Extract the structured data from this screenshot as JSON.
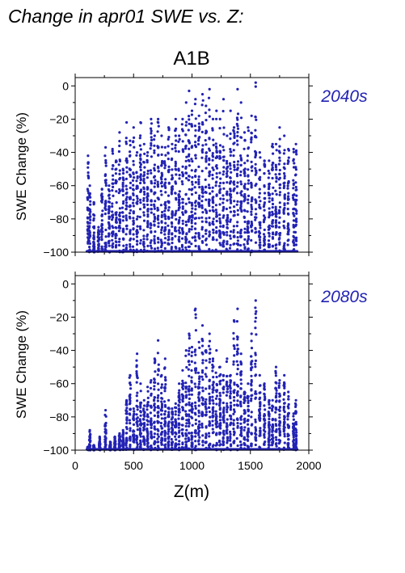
{
  "figure": {
    "title": "Change in apr01 SWE vs. Z:",
    "scenario": "A1B",
    "xlabel": "Z(m)"
  },
  "colors": {
    "points": "#2323b4",
    "panel_label": "#2323b4",
    "axes": "#000000"
  },
  "chart_data": [
    {
      "type": "scatter",
      "panel_label": "2040s",
      "ylabel": "SWE Change (%)",
      "xlim": [
        0,
        2000
      ],
      "ylim": [
        -100,
        5
      ],
      "x_ticks": [
        0,
        500,
        1000,
        1500,
        2000
      ],
      "y_ticks": [
        0,
        -20,
        -40,
        -60,
        -80,
        -100
      ],
      "x_tick_labels_shown": false,
      "grid": false,
      "columns": [
        {
          "z": 110,
          "top": -42
        },
        {
          "z": 125,
          "top": -60
        },
        {
          "z": 160,
          "top": -70
        },
        {
          "z": 200,
          "top": -85
        },
        {
          "z": 230,
          "top": -62
        },
        {
          "z": 260,
          "top": -37
        },
        {
          "z": 290,
          "top": -60
        },
        {
          "z": 320,
          "top": -38
        },
        {
          "z": 350,
          "top": -45
        },
        {
          "z": 380,
          "top": -28
        },
        {
          "z": 410,
          "top": -50
        },
        {
          "z": 440,
          "top": -22
        },
        {
          "z": 470,
          "top": -33
        },
        {
          "z": 500,
          "top": -25
        },
        {
          "z": 530,
          "top": -40
        },
        {
          "z": 560,
          "top": -22
        },
        {
          "z": 590,
          "top": -35
        },
        {
          "z": 620,
          "top": -40
        },
        {
          "z": 650,
          "top": -20
        },
        {
          "z": 680,
          "top": -30
        },
        {
          "z": 710,
          "top": -20
        },
        {
          "z": 740,
          "top": -30
        },
        {
          "z": 770,
          "top": -37
        },
        {
          "z": 800,
          "top": -25
        },
        {
          "z": 830,
          "top": -35
        },
        {
          "z": 860,
          "top": -20
        },
        {
          "z": 890,
          "top": -30
        },
        {
          "z": 920,
          "top": -20
        },
        {
          "z": 950,
          "top": -10
        },
        {
          "z": 975,
          "top": -3
        },
        {
          "z": 1000,
          "top": -15
        },
        {
          "z": 1030,
          "top": -8
        },
        {
          "z": 1060,
          "top": -18
        },
        {
          "z": 1090,
          "top": -5
        },
        {
          "z": 1120,
          "top": -12
        },
        {
          "z": 1150,
          "top": -2
        },
        {
          "z": 1180,
          "top": -20
        },
        {
          "z": 1210,
          "top": -15
        },
        {
          "z": 1240,
          "top": -20
        },
        {
          "z": 1270,
          "top": -8
        },
        {
          "z": 1300,
          "top": -30
        },
        {
          "z": 1330,
          "top": -15
        },
        {
          "z": 1360,
          "top": -25
        },
        {
          "z": 1390,
          "top": -2
        },
        {
          "z": 1420,
          "top": -10
        },
        {
          "z": 1450,
          "top": -28
        },
        {
          "z": 1480,
          "top": -25
        },
        {
          "z": 1510,
          "top": -18
        },
        {
          "z": 1545,
          "top": 2
        },
        {
          "z": 1580,
          "top": -40
        },
        {
          "z": 1620,
          "top": -45
        },
        {
          "z": 1660,
          "top": -45
        },
        {
          "z": 1690,
          "top": -35
        },
        {
          "z": 1720,
          "top": -35
        },
        {
          "z": 1750,
          "top": -25
        },
        {
          "z": 1790,
          "top": -30
        },
        {
          "z": 1825,
          "top": -38
        },
        {
          "z": 1870,
          "top": -38
        },
        {
          "z": 1890,
          "top": -35
        }
      ]
    },
    {
      "type": "scatter",
      "panel_label": "2080s",
      "ylabel": "SWE Change (%)",
      "xlim": [
        0,
        2000
      ],
      "ylim": [
        -100,
        5
      ],
      "x_ticks": [
        0,
        500,
        1000,
        1500,
        2000
      ],
      "x_tick_labels": [
        "0",
        "500",
        "1000",
        "1500",
        "2000"
      ],
      "y_ticks": [
        0,
        -20,
        -40,
        -60,
        -80,
        -100
      ],
      "grid": false,
      "columns": [
        {
          "z": 110,
          "top": -98
        },
        {
          "z": 125,
          "top": -88
        },
        {
          "z": 160,
          "top": -97
        },
        {
          "z": 210,
          "top": -92
        },
        {
          "z": 260,
          "top": -76
        },
        {
          "z": 300,
          "top": -95
        },
        {
          "z": 340,
          "top": -92
        },
        {
          "z": 380,
          "top": -90
        },
        {
          "z": 410,
          "top": -88
        },
        {
          "z": 440,
          "top": -70
        },
        {
          "z": 470,
          "top": -55
        },
        {
          "z": 500,
          "top": -75
        },
        {
          "z": 530,
          "top": -42
        },
        {
          "z": 560,
          "top": -60
        },
        {
          "z": 590,
          "top": -70
        },
        {
          "z": 620,
          "top": -62
        },
        {
          "z": 650,
          "top": -58
        },
        {
          "z": 680,
          "top": -45
        },
        {
          "z": 710,
          "top": -34
        },
        {
          "z": 740,
          "top": -55
        },
        {
          "z": 770,
          "top": -45
        },
        {
          "z": 800,
          "top": -70
        },
        {
          "z": 830,
          "top": -75
        },
        {
          "z": 860,
          "top": -72
        },
        {
          "z": 890,
          "top": -60
        },
        {
          "z": 920,
          "top": -52
        },
        {
          "z": 950,
          "top": -40
        },
        {
          "z": 975,
          "top": -30
        },
        {
          "z": 1000,
          "top": -38
        },
        {
          "z": 1030,
          "top": -15
        },
        {
          "z": 1060,
          "top": -35
        },
        {
          "z": 1090,
          "top": -25
        },
        {
          "z": 1120,
          "top": -40
        },
        {
          "z": 1150,
          "top": -30
        },
        {
          "z": 1180,
          "top": -45
        },
        {
          "z": 1210,
          "top": -40
        },
        {
          "z": 1240,
          "top": -50
        },
        {
          "z": 1270,
          "top": -55
        },
        {
          "z": 1300,
          "top": -45
        },
        {
          "z": 1330,
          "top": -55
        },
        {
          "z": 1360,
          "top": -22
        },
        {
          "z": 1390,
          "top": -15
        },
        {
          "z": 1420,
          "top": -42
        },
        {
          "z": 1450,
          "top": -65
        },
        {
          "z": 1480,
          "top": -60
        },
        {
          "z": 1510,
          "top": -30
        },
        {
          "z": 1545,
          "top": -10
        },
        {
          "z": 1580,
          "top": -55
        },
        {
          "z": 1620,
          "top": -60
        },
        {
          "z": 1660,
          "top": -70
        },
        {
          "z": 1690,
          "top": -70
        },
        {
          "z": 1720,
          "top": -50
        },
        {
          "z": 1750,
          "top": -58
        },
        {
          "z": 1790,
          "top": -55
        },
        {
          "z": 1825,
          "top": -65
        },
        {
          "z": 1870,
          "top": -78
        },
        {
          "z": 1890,
          "top": -70
        }
      ]
    }
  ]
}
